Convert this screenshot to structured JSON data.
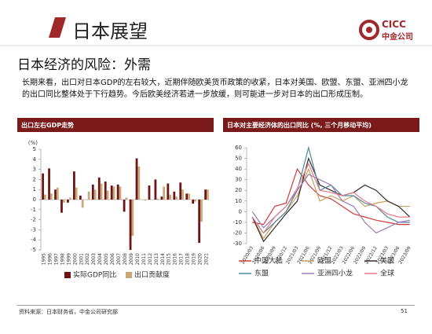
{
  "header": {
    "title": "日本展望",
    "logo": "CICC",
    "logo_sub": "中金公司"
  },
  "subtitle": "日本经济的风险：外需",
  "paragraph": "长期来看，出口对日本GDP的左右较大，近期伴随欧美货币政策的收紧，日本对美国、欧盟、东盟、亚洲四小龙的出口同比整体处于下行趋势。今后欧美经济若进一步放缓，则可能进一步对日本的出口形成压制。",
  "chart_data": [
    {
      "type": "bar",
      "title": "出口左右GDP走势",
      "y_label": "(%)",
      "categories": [
        "1995",
        "1996",
        "1997",
        "1998",
        "1999",
        "2000",
        "2001",
        "2002",
        "2003",
        "2004",
        "2005",
        "2006",
        "2007",
        "2008",
        "2009",
        "2010",
        "2011",
        "2012",
        "2013",
        "2014",
        "2015",
        "2016",
        "2017",
        "2018",
        "2019",
        "2020",
        "2021"
      ],
      "series": [
        {
          "name": "实际GDP同比",
          "color": "#6e1414",
          "values": [
            2.6,
            3.1,
            1.0,
            -1.3,
            -0.3,
            2.8,
            0.4,
            0.0,
            1.5,
            2.2,
            1.8,
            1.4,
            1.5,
            -1.2,
            -5.0,
            4.1,
            0.0,
            1.4,
            2.0,
            0.3,
            1.6,
            0.8,
            1.7,
            0.6,
            -0.4,
            -4.3,
            1.0
          ]
        },
        {
          "name": "出口贡献度",
          "color": "#c8a878",
          "values": [
            0.5,
            0.6,
            1.2,
            -0.3,
            0.2,
            1.2,
            -0.8,
            0.8,
            1.0,
            1.6,
            0.9,
            1.3,
            1.3,
            0.2,
            -3.6,
            3.3,
            -0.1,
            0.0,
            0.1,
            1.3,
            0.5,
            0.3,
            1.0,
            0.6,
            -0.2,
            -2.2,
            1.0
          ]
        }
      ],
      "ylim": [
        -5,
        5
      ],
      "yticks": [
        -5,
        -4,
        -3,
        -2,
        -1,
        0,
        1,
        2,
        3,
        4,
        5
      ],
      "grid": false
    },
    {
      "type": "line",
      "title": "日本对主要经济体的出口同比 (%, 三个月移动平均)",
      "categories": [
        "2020/03",
        "2020/06",
        "2020/09",
        "2020/12",
        "2021/03",
        "2021/06",
        "2021/09",
        "2021/12",
        "2022/03",
        "2022/06",
        "2022/09",
        "2022/12",
        "2023/03",
        "2023/06",
        "2023/09"
      ],
      "series": [
        {
          "name": "中国大陆",
          "color": "#d23c3c",
          "values": [
            -10,
            -12,
            5,
            8,
            40,
            25,
            15,
            12,
            5,
            -2,
            -5,
            -8,
            -10,
            -12,
            -12
          ]
        },
        {
          "name": "欧盟",
          "color": "#c8a060",
          "values": [
            -5,
            -25,
            -10,
            0,
            15,
            40,
            10,
            15,
            10,
            15,
            5,
            8,
            10,
            5,
            5
          ]
        },
        {
          "name": "美国",
          "color": "#3a2a2a",
          "values": [
            -5,
            -28,
            -15,
            -2,
            10,
            50,
            25,
            20,
            15,
            18,
            25,
            20,
            10,
            5,
            -5
          ]
        },
        {
          "name": "东盟",
          "color": "#4a8a9a",
          "values": [
            -5,
            -20,
            -10,
            0,
            20,
            60,
            20,
            25,
            15,
            15,
            8,
            5,
            -5,
            -10,
            -10
          ]
        },
        {
          "name": "亚洲四小龙",
          "color": "#9a7ab8",
          "values": [
            0,
            -15,
            -5,
            5,
            20,
            35,
            30,
            25,
            10,
            5,
            -10,
            -20,
            -15,
            -10,
            -8
          ]
        },
        {
          "name": "全球",
          "color": "#e87a86",
          "values": [
            -5,
            -20,
            -5,
            5,
            22,
            45,
            20,
            18,
            15,
            18,
            10,
            5,
            -2,
            -5,
            -5
          ]
        }
      ],
      "ylim": [
        -30,
        60
      ],
      "yticks": [
        -30,
        -20,
        -10,
        0,
        10,
        20,
        30,
        40,
        50,
        60
      ],
      "grid": false
    }
  ],
  "footer": {
    "source": "资料来源：日本财务省，中金公司研究部",
    "page": "51"
  }
}
